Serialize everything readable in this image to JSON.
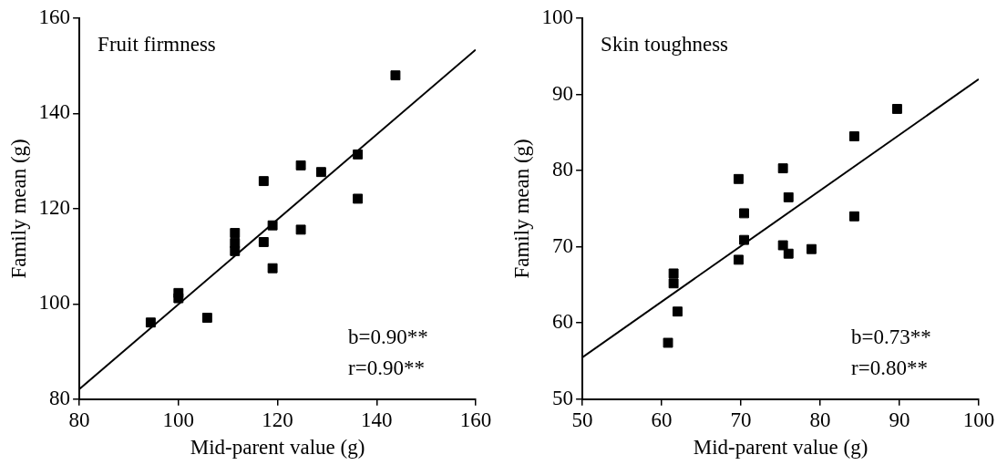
{
  "chart_data": [
    {
      "type": "scatter",
      "title": "Fruit firmness",
      "xlabel": "Mid-parent value (g)",
      "ylabel": "Family mean (g)",
      "xlim": [
        80,
        160
      ],
      "xticks": [
        80,
        100,
        120,
        140,
        160
      ],
      "ylim": [
        80,
        160
      ],
      "yticks": [
        80,
        100,
        120,
        140,
        160
      ],
      "grid": false,
      "legend": false,
      "marker": "square",
      "annotations": [
        "b=0.90**",
        "r=0.90**"
      ],
      "series": [
        {
          "color": "#000000",
          "x": [
            94.4,
            100,
            100,
            105.8,
            111.4,
            111.4,
            111.4,
            117.2,
            117.2,
            119,
            119,
            124.7,
            124.7,
            128.8,
            136.2,
            136.2,
            143.8
          ],
          "values": [
            96.1,
            102.3,
            101.2,
            97.1,
            114.9,
            112.8,
            111.1,
            113,
            125.8,
            116.5,
            107.5,
            129.1,
            115.6,
            127.7,
            131.4,
            122.1,
            148
          ]
        },
        {
          "type": "line",
          "color": "#000000",
          "marker": "none",
          "x": [
            80,
            160
          ],
          "values": [
            82.1,
            153.4
          ]
        }
      ]
    },
    {
      "type": "scatter",
      "title": "Skin toughness",
      "xlabel": "Mid-parent value (g)",
      "ylabel": "Family mean (g)",
      "xlim": [
        50,
        100
      ],
      "xticks": [
        50,
        60,
        70,
        80,
        90,
        100
      ],
      "ylim": [
        50,
        100
      ],
      "yticks": [
        50,
        60,
        70,
        80,
        90,
        100
      ],
      "grid": false,
      "legend": false,
      "marker": "square",
      "annotations": [
        "b=0.73**",
        "r=0.80**"
      ],
      "series": [
        {
          "color": "#000000",
          "x": [
            60.8,
            61.5,
            61.5,
            62,
            69.7,
            69.7,
            70.4,
            70.4,
            75.3,
            75.3,
            76,
            76,
            78.9,
            84.3,
            84.3,
            89.7
          ],
          "values": [
            57.4,
            66.5,
            65.2,
            61.5,
            78.9,
            68.3,
            74.4,
            70.9,
            80.3,
            70.2,
            76.5,
            69.1,
            69.7,
            84.5,
            74,
            88.1
          ]
        },
        {
          "type": "line",
          "color": "#000000",
          "marker": "none",
          "x": [
            50,
            100
          ],
          "values": [
            55.5,
            92
          ]
        }
      ]
    }
  ]
}
